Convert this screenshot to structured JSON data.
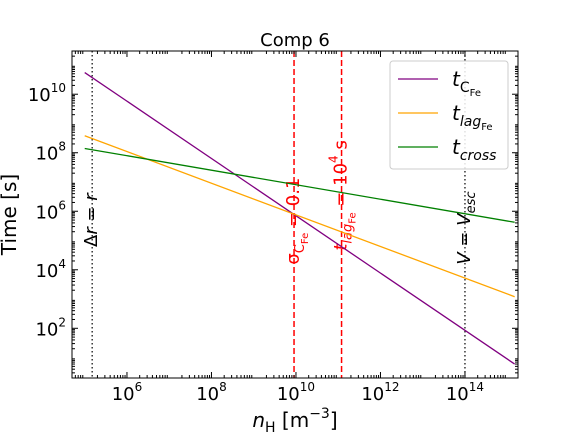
{
  "chart_data": {
    "type": "line",
    "title": "Comp 6",
    "xlabel": "n_H [m^-3]",
    "xlabel_parts": {
      "symbol": "n",
      "subscript": "H",
      "unit_open": " [m",
      "unit_sup": "−3",
      "unit_close": "]"
    },
    "ylabel": "Time [s]",
    "xscale": "log",
    "yscale": "log",
    "xlim": [
      50000.0,
      1800000000000000.0
    ],
    "ylim": [
      2.0,
      300000000000.0
    ],
    "x_ticks": [
      {
        "value": 1000000.0,
        "base": "10",
        "exp": "6"
      },
      {
        "value": 100000000.0,
        "base": "10",
        "exp": "8"
      },
      {
        "value": 10000000000.0,
        "base": "10",
        "exp": "10"
      },
      {
        "value": 1000000000000.0,
        "base": "10",
        "exp": "12"
      },
      {
        "value": 100000000000000.0,
        "base": "10",
        "exp": "14"
      }
    ],
    "y_ticks": [
      {
        "value": 100.0,
        "base": "10",
        "exp": "2"
      },
      {
        "value": 10000.0,
        "base": "10",
        "exp": "4"
      },
      {
        "value": 1000000.0,
        "base": "10",
        "exp": "6"
      },
      {
        "value": 100000000.0,
        "base": "10",
        "exp": "8"
      },
      {
        "value": 10000000000.0,
        "base": "10",
        "exp": "10"
      }
    ],
    "series": [
      {
        "name": "t_CFe",
        "legend": {
          "main": "t",
          "sub": "C",
          "subsub": "Fe"
        },
        "color": "#800080",
        "points": [
          [
            100000.0,
            55000000000.0
          ],
          [
            1500000000000000.0,
            6.0
          ]
        ]
      },
      {
        "name": "t_lagFe",
        "legend": {
          "main": "t",
          "sub": "lag",
          "subsub": "Fe"
        },
        "color": "#ffa500",
        "points": [
          [
            100000.0,
            380000000.0
          ],
          [
            1500000000000000.0,
            1200.0
          ]
        ]
      },
      {
        "name": "t_cross",
        "legend": {
          "main": "t",
          "sub": "cross",
          "subsub": ""
        },
        "color": "#008000",
        "points": [
          [
            100000.0,
            140000000.0
          ],
          [
            1500000000000000.0,
            420000.0
          ]
        ]
      }
    ],
    "legend_position": "upper-right",
    "vlines": [
      {
        "x": 150000.0,
        "color": "#000000",
        "style": "dotted",
        "label": {
          "parts": [
            [
              "Δ",
              "normal"
            ],
            [
              "r",
              "italic"
            ],
            [
              " = ",
              "normal"
            ],
            [
              "r",
              "italic"
            ]
          ]
        },
        "label_y": 60000.0
      },
      {
        "x": 9000000000.0,
        "color": "#ff0000",
        "style": "dashed",
        "label": {
          "parts": [
            [
              "σ",
              "normal"
            ],
            [
              "C",
              "sub"
            ],
            [
              "Fe",
              "subsub"
            ],
            [
              " = 0.1",
              "normal"
            ]
          ]
        },
        "label_y": 15000.0
      },
      {
        "x": 120000000000.0,
        "color": "#ff0000",
        "style": "dashed",
        "label": {
          "parts": [
            [
              "t",
              "italic"
            ],
            [
              "lag",
              "sub"
            ],
            [
              "Fe",
              "subsub"
            ],
            [
              " = 10",
              "normal"
            ],
            [
              "4",
              "sup"
            ],
            [
              " s",
              "normal"
            ]
          ]
        },
        "label_y": 45000.0
      },
      {
        "x": 100000000000000.0,
        "color": "#000000",
        "style": "dotted",
        "label": {
          "parts": [
            [
              "V",
              "italic"
            ],
            [
              " = ",
              "normal"
            ],
            [
              "V",
              "italic"
            ],
            [
              "esc",
              "sub"
            ]
          ]
        },
        "label_y": 15000.0
      }
    ],
    "grid": false
  }
}
